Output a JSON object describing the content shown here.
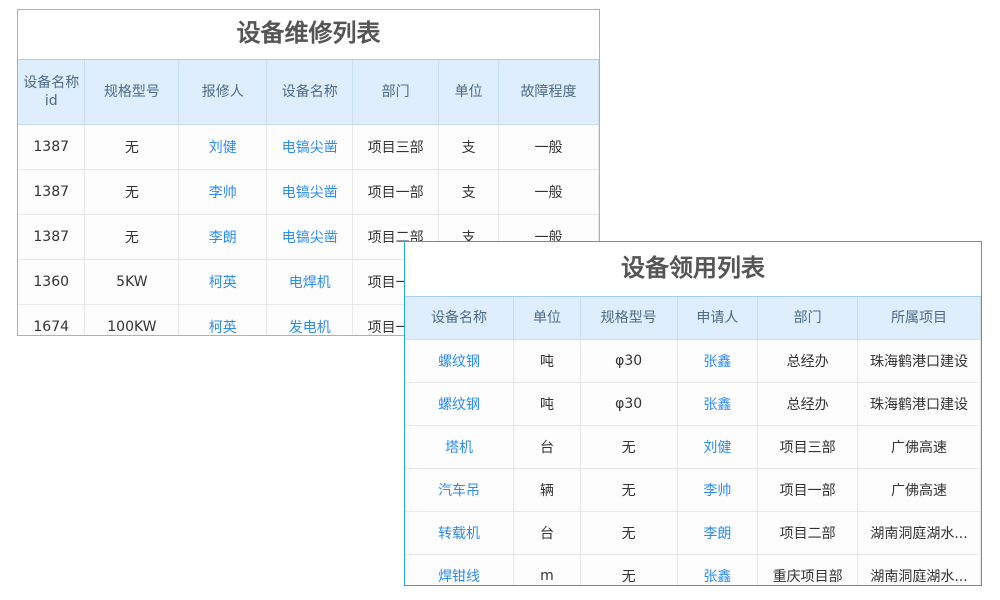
{
  "repair": {
    "title": "设备维修列表",
    "headers": [
      "设备名称id",
      "规格型号",
      "报修人",
      "设备名称",
      "部门",
      "单位",
      "故障程度"
    ],
    "rows": [
      [
        "1387",
        "无",
        "刘健",
        "电镐尖凿",
        "项目三部",
        "支",
        "一般"
      ],
      [
        "1387",
        "无",
        "李帅",
        "电镐尖凿",
        "项目一部",
        "支",
        "一般"
      ],
      [
        "1387",
        "无",
        "李朗",
        "电镐尖凿",
        "项目二部",
        "支",
        "一般"
      ],
      [
        "1360",
        "5KW",
        "柯英",
        "电焊机",
        "项目一部",
        "",
        ""
      ],
      [
        "1674",
        "100KW",
        "柯英",
        "发电机",
        "项目一部",
        "",
        ""
      ]
    ]
  },
  "usage": {
    "title": "设备领用列表",
    "headers": [
      "设备名称",
      "单位",
      "规格型号",
      "申请人",
      "部门",
      "所属项目"
    ],
    "rows": [
      [
        "螺纹钢",
        "吨",
        "φ30",
        "张鑫",
        "总经办",
        "珠海鹤港口建设"
      ],
      [
        "螺纹钢",
        "吨",
        "φ30",
        "张鑫",
        "总经办",
        "珠海鹤港口建设"
      ],
      [
        "塔机",
        "台",
        "无",
        "刘健",
        "项目三部",
        "广佛高速"
      ],
      [
        "汽车吊",
        "辆",
        "无",
        "李帅",
        "项目一部",
        "广佛高速"
      ],
      [
        "转载机",
        "台",
        "无",
        "李朗",
        "项目二部",
        "湖南洞庭湖水..."
      ],
      [
        "焊钳线",
        "m",
        "无",
        "张鑫",
        "重庆项目部",
        "湖南洞庭湖水..."
      ]
    ]
  },
  "colors": {
    "link": "#2d8cf0",
    "header_bg": "#dfeefc",
    "accent_border": "#1ea7ec"
  }
}
